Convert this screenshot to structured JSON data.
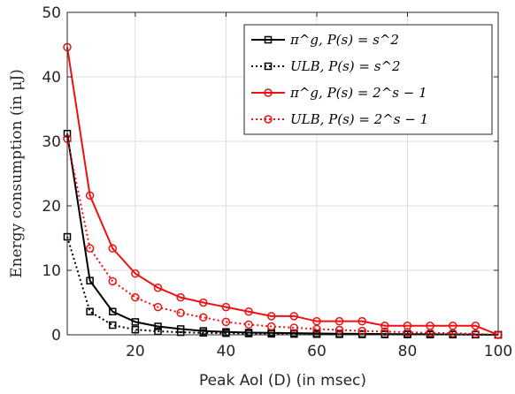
{
  "chart_data": {
    "type": "line",
    "xlabel": "Peak AoI (D) (in msec)",
    "ylabel": "Energy consumption (in μJ)",
    "xlim": [
      5,
      100
    ],
    "ylim": [
      0,
      50
    ],
    "xticks": [
      20,
      40,
      60,
      80,
      100
    ],
    "yticks": [
      0,
      10,
      20,
      30,
      40,
      50
    ],
    "grid": true,
    "legend_position": "top-right",
    "x": [
      5,
      10,
      15,
      20,
      25,
      30,
      35,
      40,
      45,
      50,
      55,
      60,
      65,
      70,
      75,
      80,
      85,
      90,
      95,
      100
    ],
    "series": [
      {
        "name": "π^g, P(s) = s^2",
        "color": "#000000",
        "line": "solid",
        "marker": "square",
        "values": [
          31.2,
          8.4,
          3.6,
          2.0,
          1.3,
          0.9,
          0.6,
          0.45,
          0.35,
          0.3,
          0.25,
          0.2,
          0.17,
          0.15,
          0.12,
          0.1,
          0.08,
          0.06,
          0.04,
          0.0
        ]
      },
      {
        "name": "ULB, P(s) = s^2",
        "color": "#000000",
        "line": "dotted",
        "marker": "square",
        "values": [
          15.2,
          3.6,
          1.5,
          0.8,
          0.55,
          0.4,
          0.3,
          0.25,
          0.2,
          0.15,
          0.12,
          0.1,
          0.08,
          0.07,
          0.06,
          0.05,
          0.04,
          0.03,
          0.02,
          0.0
        ]
      },
      {
        "name": "π^g, P(s) = 2^s − 1",
        "color": "#ee1111",
        "line": "solid",
        "marker": "circle",
        "values": [
          44.6,
          21.6,
          13.4,
          9.5,
          7.3,
          5.8,
          5.0,
          4.3,
          3.6,
          2.9,
          2.9,
          2.1,
          2.1,
          2.1,
          1.4,
          1.4,
          1.4,
          1.4,
          1.4,
          0.0
        ]
      },
      {
        "name": "ULB, P(s) = 2^s − 1",
        "color": "#ee1111",
        "line": "dotted",
        "marker": "circle",
        "values": [
          30.4,
          13.4,
          8.3,
          5.8,
          4.3,
          3.4,
          2.7,
          2.0,
          1.6,
          1.3,
          1.1,
          0.9,
          0.75,
          0.6,
          0.5,
          0.4,
          0.3,
          0.25,
          0.15,
          0.0
        ]
      }
    ]
  }
}
